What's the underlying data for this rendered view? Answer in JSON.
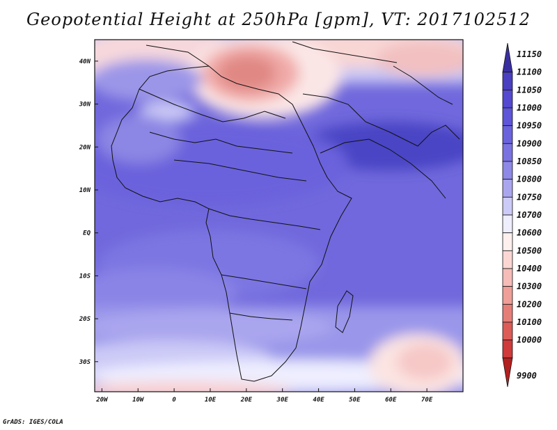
{
  "title": "Geopotential Height at 250hPa [gpm], VT: 2017102512",
  "footer": "GrADS: IGES/COLA",
  "map": {
    "lon_range": [
      -22,
      80
    ],
    "lat_range": [
      -37,
      45
    ],
    "lat_ticks": [
      {
        "value": 40,
        "label": "40N"
      },
      {
        "value": 30,
        "label": "30N"
      },
      {
        "value": 20,
        "label": "20N"
      },
      {
        "value": 10,
        "label": "10N"
      },
      {
        "value": 0,
        "label": "EQ"
      },
      {
        "value": -10,
        "label": "10S"
      },
      {
        "value": -20,
        "label": "20S"
      },
      {
        "value": -30,
        "label": "30S"
      }
    ],
    "lon_ticks": [
      {
        "value": -20,
        "label": "20W"
      },
      {
        "value": -10,
        "label": "10W"
      },
      {
        "value": 0,
        "label": "0"
      },
      {
        "value": 10,
        "label": "10E"
      },
      {
        "value": 20,
        "label": "20E"
      },
      {
        "value": 30,
        "label": "30E"
      },
      {
        "value": 40,
        "label": "40E"
      },
      {
        "value": 50,
        "label": "50E"
      },
      {
        "value": 60,
        "label": "60E"
      },
      {
        "value": 70,
        "label": "70E"
      }
    ]
  },
  "colorbar": {
    "levels": [
      "11150",
      "11100",
      "11050",
      "11000",
      "10950",
      "10900",
      "10850",
      "10800",
      "10750",
      "10700",
      "10600",
      "10500",
      "10400",
      "10300",
      "10200",
      "10100",
      "10000",
      "9900"
    ],
    "colors": [
      "#3a2fa0",
      "#4a3fc0",
      "#5549d0",
      "#5e55d8",
      "#6a62dc",
      "#7a72e0",
      "#8e88e6",
      "#aaa6ee",
      "#cccaf6",
      "#eeeeff",
      "#fff0ee",
      "#fcd6d2",
      "#f6bcb8",
      "#ef9e98",
      "#e67e78",
      "#dc5c58",
      "#cf3a3a",
      "#b32020"
    ]
  }
}
